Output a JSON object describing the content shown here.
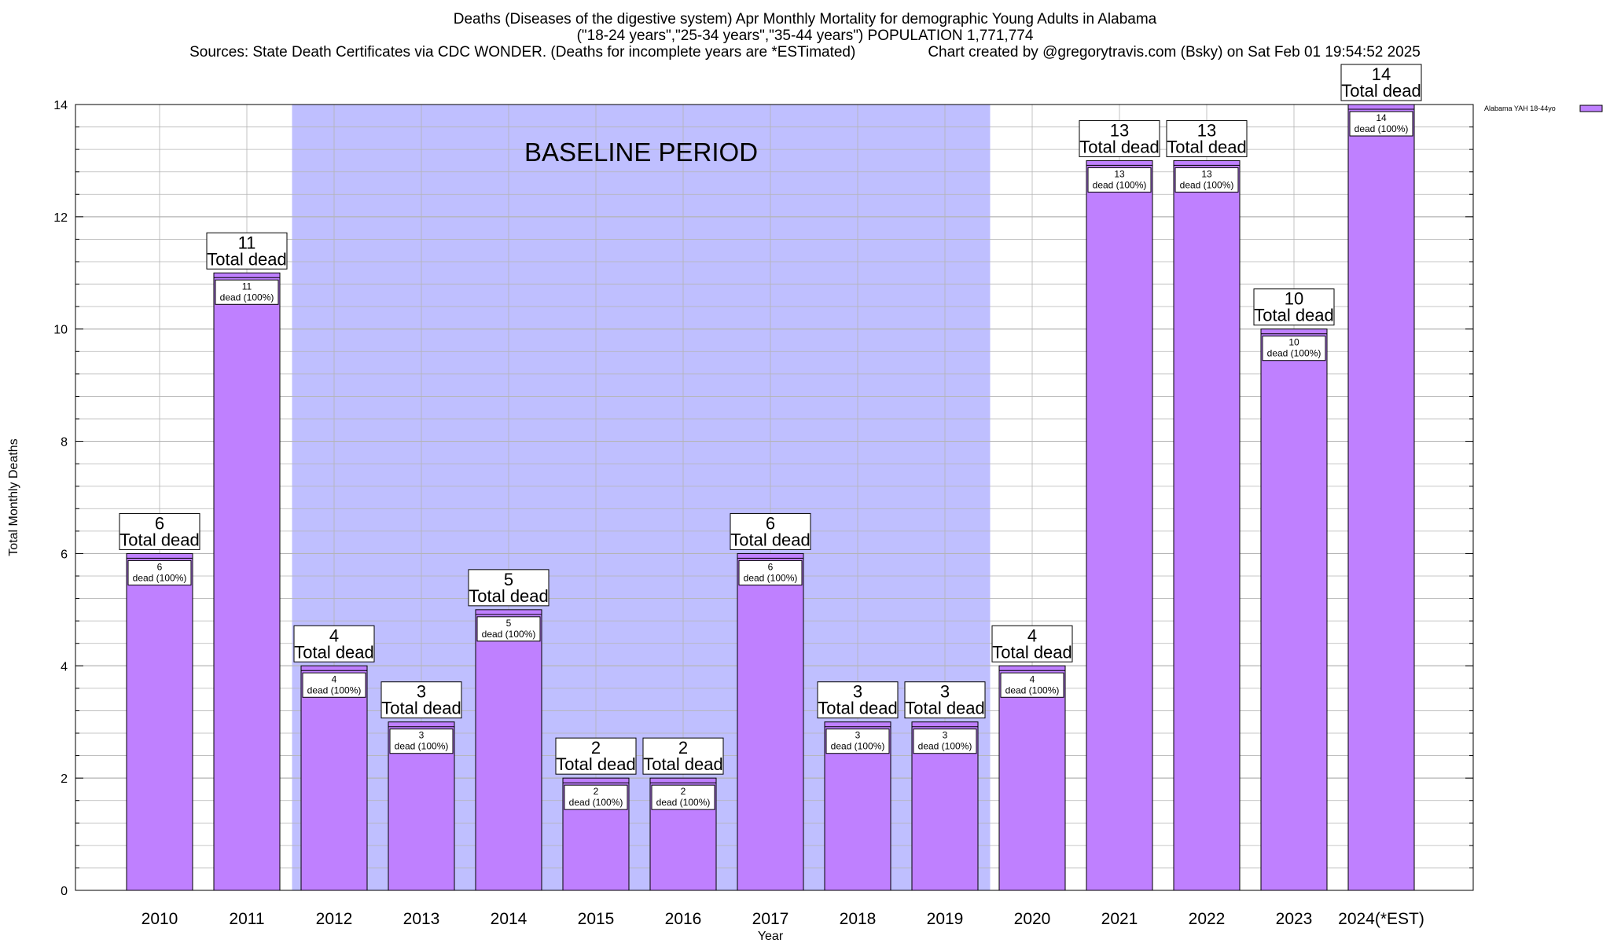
{
  "chart_data": {
    "type": "bar",
    "title": "Deaths (Diseases of the digestive system) Apr Monthly Mortality for demographic Young Adults in Alabama",
    "subtitle": "(\"18-24 years\",\"25-34 years\",\"35-44 years\") POPULATION 1,771,774",
    "source_note": "Sources: State Death Certificates via CDC WONDER. (Deaths for incomplete years are *ESTimated)",
    "credit": "Chart created by @gregorytravis.com (Bsky) on Sat Feb 01 19:54:52 2025",
    "xlabel": "Year",
    "ylabel": "Total Monthly Deaths",
    "ylim": [
      0,
      14
    ],
    "yticks": [
      0,
      2,
      4,
      6,
      8,
      10,
      12,
      14
    ],
    "grid": true,
    "legend_position": "top-right",
    "categories": [
      "2010",
      "2011",
      "2012",
      "2013",
      "2014",
      "2015",
      "2016",
      "2017",
      "2018",
      "2019",
      "2020",
      "2021",
      "2022",
      "2023",
      "2024(*EST)"
    ],
    "series": [
      {
        "name": "Alabama YAH 18-44yo",
        "values": [
          6,
          11,
          4,
          3,
          5,
          2,
          2,
          6,
          3,
          3,
          4,
          13,
          13,
          10,
          14
        ]
      }
    ],
    "total_label_text": "Total dead",
    "inner_label_text": "dead (100%)",
    "baseline_period": {
      "label": "BASELINE PERIOD",
      "from": "2012",
      "to": "2019"
    },
    "colors": {
      "bar_fill": "#bf80ff",
      "bar_stroke": "#000000",
      "baseline_shade": "#bfbfff",
      "grid": "#b4b4b4"
    }
  }
}
